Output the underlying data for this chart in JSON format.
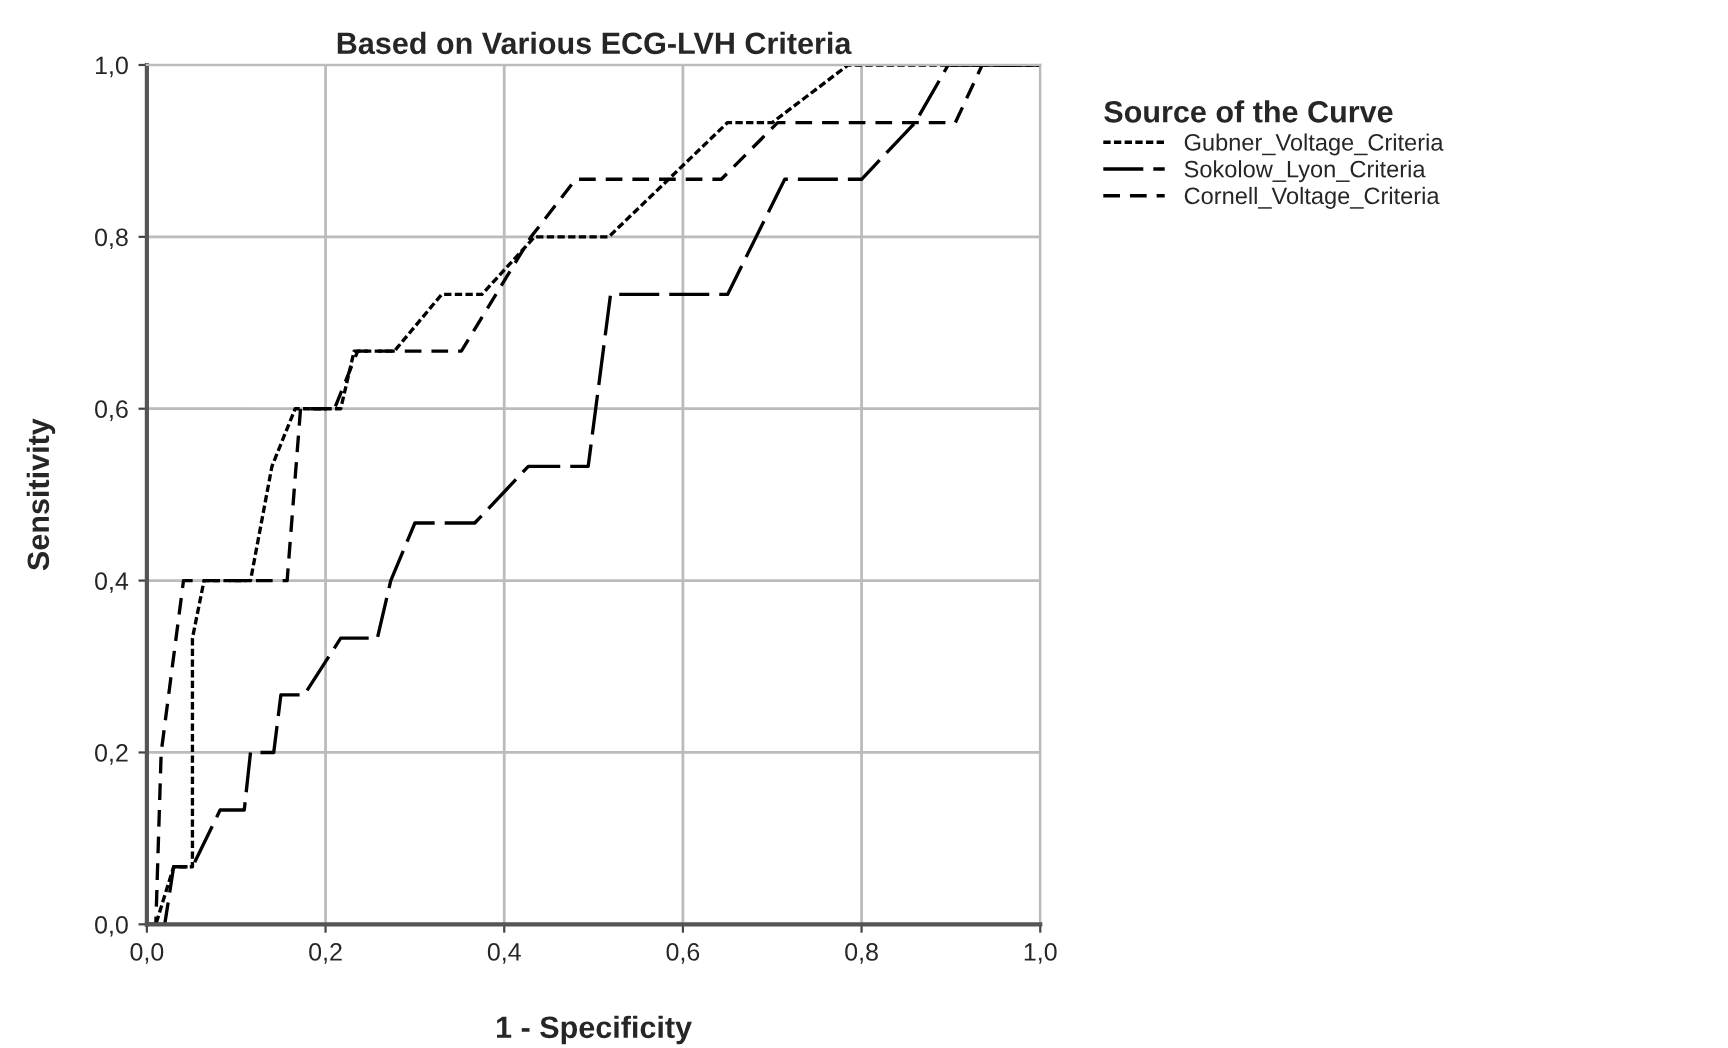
{
  "chart_data": {
    "type": "line",
    "title": "Based on Various ECG-LVH Criteria",
    "xlabel": "1 - Specificity",
    "ylabel": "Sensitivity",
    "legend_title": "Source of the Curve",
    "legend": "top right",
    "grid": true,
    "marker": "none",
    "xlim": [
      0,
      1
    ],
    "ylim": [
      0,
      1
    ],
    "xticks": [
      {
        "value": 0,
        "label": "0,0"
      },
      {
        "value": 0.2,
        "label": "0,2"
      },
      {
        "value": 0.4,
        "label": "0,4"
      },
      {
        "value": 0.6,
        "label": "0,6"
      },
      {
        "value": 0.8,
        "label": "0,8"
      },
      {
        "value": 1,
        "label": "1,0"
      }
    ],
    "yticks": [
      {
        "value": 0,
        "label": "0,0"
      },
      {
        "value": 0.2,
        "label": "0,2"
      },
      {
        "value": 0.4,
        "label": "0,4"
      },
      {
        "value": 0.6,
        "label": "0,6"
      },
      {
        "value": 0.8,
        "label": "0,8"
      },
      {
        "value": 1,
        "label": "1,0"
      }
    ],
    "series": [
      {
        "name": "Gubner_Voltage_Criteria",
        "color": "#000000",
        "line_style": "dotted",
        "x": [
          0,
          0.01,
          0.03,
          0.051,
          0.051,
          0.064,
          0.116,
          0.14,
          0.166,
          0.217,
          0.232,
          0.277,
          0.33,
          0.375,
          0.434,
          0.517,
          0.65,
          0.7,
          0.785,
          1
        ],
        "values": [
          0,
          0,
          0.067,
          0.067,
          0.333,
          0.4,
          0.4,
          0.533,
          0.6,
          0.6,
          0.667,
          0.667,
          0.733,
          0.733,
          0.8,
          0.8,
          0.933,
          0.933,
          1,
          1
        ]
      },
      {
        "name": "Sokolow_Lyon_Criteria",
        "color": "#000000",
        "line_style": "long_dashed",
        "x": [
          0,
          0.02,
          0.03,
          0.051,
          0.082,
          0.109,
          0.116,
          0.142,
          0.15,
          0.176,
          0.217,
          0.258,
          0.273,
          0.3,
          0.367,
          0.427,
          0.494,
          0.519,
          0.65,
          0.714,
          0.8,
          0.86,
          0.897,
          1
        ],
        "values": [
          0,
          0,
          0.067,
          0.067,
          0.133,
          0.133,
          0.2,
          0.2,
          0.267,
          0.267,
          0.333,
          0.333,
          0.4,
          0.467,
          0.467,
          0.533,
          0.533,
          0.733,
          0.733,
          0.867,
          0.867,
          0.933,
          1,
          1
        ]
      },
      {
        "name": "Cornell_Voltage_Criteria",
        "color": "#000000",
        "line_style": "dashed",
        "x": [
          0,
          0.01,
          0.016,
          0.041,
          0.157,
          0.172,
          0.21,
          0.236,
          0.352,
          0.43,
          0.48,
          0.643,
          0.706,
          0.905,
          0.935,
          1
        ],
        "values": [
          0,
          0,
          0.2,
          0.4,
          0.4,
          0.6,
          0.6,
          0.667,
          0.667,
          0.8,
          0.867,
          0.867,
          0.933,
          0.933,
          1,
          1
        ]
      }
    ]
  }
}
